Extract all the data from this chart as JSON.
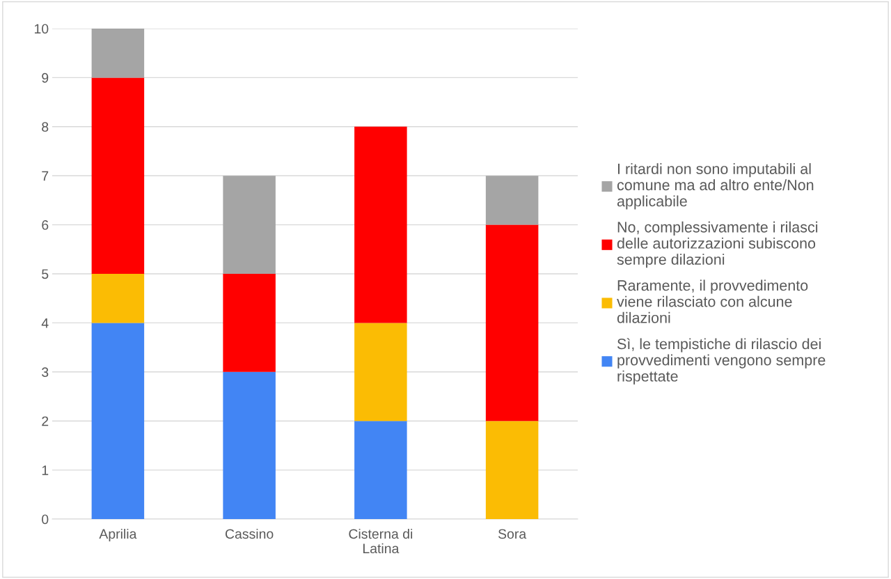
{
  "chart_data": {
    "type": "bar",
    "stacked": true,
    "categories": [
      "Aprilia",
      "Cassino",
      "Cisterna di\nLatina",
      "Sora"
    ],
    "series": [
      {
        "name": "Sì, le tempistiche di rilascio dei\nprovvedimenti vengono sempre\nrispettate",
        "color": "#4285f4",
        "values": [
          4,
          3,
          2,
          0
        ]
      },
      {
        "name": "Raramente, il provvedimento\nviene rilasciato con alcune\ndilazioni",
        "color": "#fbbc04",
        "values": [
          1,
          0,
          2,
          2
        ]
      },
      {
        "name": "No, complessivamente i rilasci\ndelle autorizzazioni subiscono\nsempre dilazioni",
        "color": "#ff0000",
        "values": [
          4,
          2,
          4,
          4
        ]
      },
      {
        "name": "I ritardi non sono imputabili al\ncomune ma ad altro ente/Non\napplicabile",
        "color": "#a5a5a5",
        "values": [
          1,
          2,
          0,
          1
        ]
      }
    ],
    "ylim": [
      0,
      10
    ],
    "yticks": [
      0,
      1,
      2,
      3,
      4,
      5,
      6,
      7,
      8,
      9,
      10
    ],
    "grid": "y",
    "legend": "right"
  }
}
